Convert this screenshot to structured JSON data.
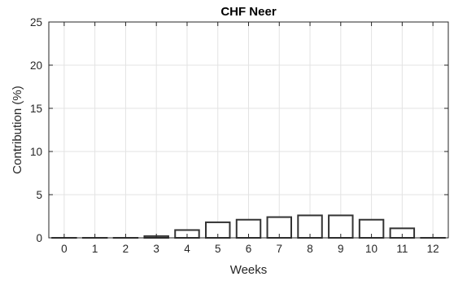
{
  "chart_data": {
    "type": "bar",
    "title": "CHF Neer",
    "xlabel": "Weeks",
    "ylabel": "Contribution (%)",
    "categories": [
      "0",
      "1",
      "2",
      "3",
      "4",
      "5",
      "6",
      "7",
      "8",
      "9",
      "10",
      "11",
      "12"
    ],
    "values": [
      0.0,
      0.0,
      0.0,
      0.2,
      0.9,
      1.8,
      2.1,
      2.4,
      2.6,
      2.6,
      2.1,
      1.1,
      0.0
    ],
    "ylim": [
      0,
      25
    ],
    "yticks": [
      "0",
      "5",
      "10",
      "15",
      "20",
      "25"
    ],
    "grid": true,
    "legend": "none",
    "colors": {
      "bar_fill": "#ffffff",
      "bar_edge": "#333333",
      "grid": "#e3e3e3",
      "axis": "#262626"
    }
  }
}
